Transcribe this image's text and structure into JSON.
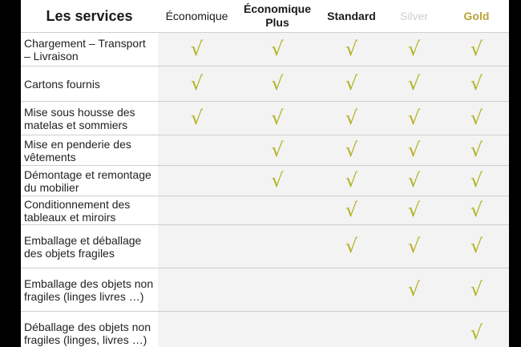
{
  "headers": {
    "services": "Les services",
    "economique": "Économique",
    "economique_plus": "Économique\nPlus",
    "standard": "Standard",
    "silver": "Silver",
    "gold": "Gold"
  },
  "check_symbol": "√",
  "check_color": "#b3b325",
  "rows": [
    {
      "service": "Chargement – Transport – Livraison",
      "economique": true,
      "economique_plus": true,
      "standard": true,
      "silver": true,
      "gold": true
    },
    {
      "service": "Cartons fournis",
      "economique": true,
      "economique_plus": true,
      "standard": true,
      "silver": true,
      "gold": true
    },
    {
      "service": "Mise sous housse des matelas et sommiers",
      "economique": true,
      "economique_plus": true,
      "standard": true,
      "silver": true,
      "gold": true
    },
    {
      "service": "Mise en penderie des vêtements",
      "economique": false,
      "economique_plus": true,
      "standard": true,
      "silver": true,
      "gold": true
    },
    {
      "service": "Démontage et remontage du mobilier",
      "economique": false,
      "economique_plus": true,
      "standard": true,
      "silver": true,
      "gold": true
    },
    {
      "service": "Conditionnement des tableaux et miroirs",
      "economique": false,
      "economique_plus": false,
      "standard": true,
      "silver": true,
      "gold": true
    },
    {
      "service": "Emballage et déballage des objets fragiles",
      "economique": false,
      "economique_plus": false,
      "standard": true,
      "silver": true,
      "gold": true
    },
    {
      "service": "Emballage des objets non fragiles (linges livres …)",
      "economique": false,
      "economique_plus": false,
      "standard": false,
      "silver": true,
      "gold": true
    },
    {
      "service": "Déballage des objets non fragiles (linges, livres …)",
      "economique": false,
      "economique_plus": false,
      "standard": false,
      "silver": false,
      "gold": true
    }
  ]
}
